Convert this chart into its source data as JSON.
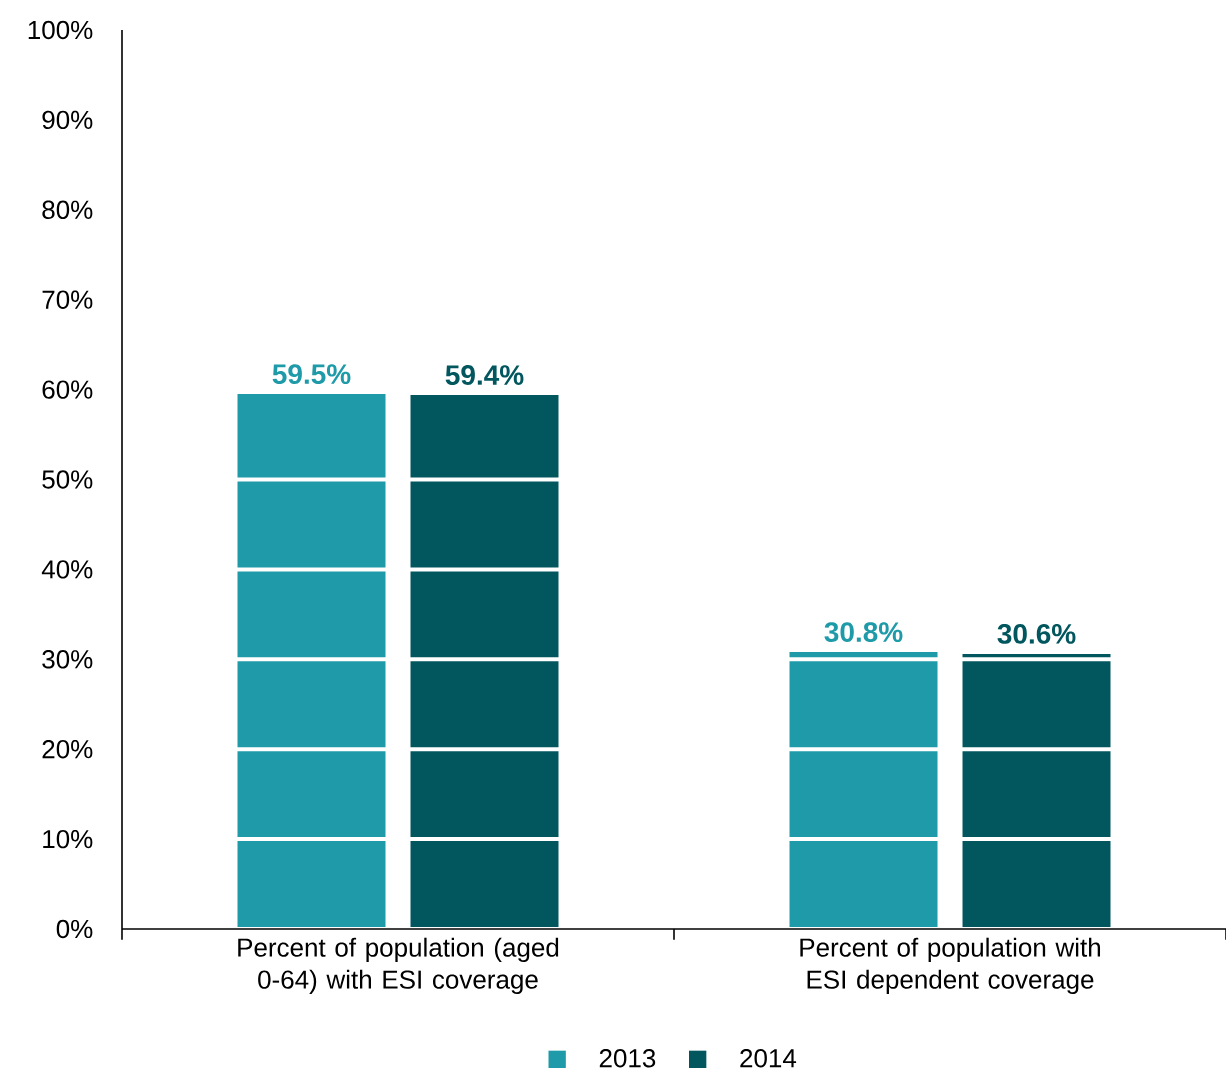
{
  "chart_data": {
    "type": "bar",
    "categories": [
      "Percent of population (aged 0-64) with ESI coverage",
      "Percent of population with ESI dependent coverage"
    ],
    "series": [
      {
        "name": "2013",
        "color": "#1f9aa8",
        "values": [
          59.5,
          30.8
        ],
        "value_labels": [
          "59.5%",
          "30.8%"
        ]
      },
      {
        "name": "2014",
        "color": "#02565e",
        "values": [
          59.4,
          30.6
        ],
        "value_labels": [
          "59.4%",
          "30.6%"
        ]
      }
    ],
    "ylim": [
      0,
      100
    ],
    "yticks": [
      {
        "value": 0,
        "label": "0%"
      },
      {
        "value": 10,
        "label": "10%"
      },
      {
        "value": 20,
        "label": "20%"
      },
      {
        "value": 30,
        "label": "30%"
      },
      {
        "value": 40,
        "label": "40%"
      },
      {
        "value": 50,
        "label": "50%"
      },
      {
        "value": 60,
        "label": "60%"
      },
      {
        "value": 70,
        "label": "70%"
      },
      {
        "value": 80,
        "label": "80%"
      },
      {
        "value": 90,
        "label": "90%"
      },
      {
        "value": 100,
        "label": "100%"
      }
    ],
    "grid": "y",
    "legend": "bottom"
  }
}
